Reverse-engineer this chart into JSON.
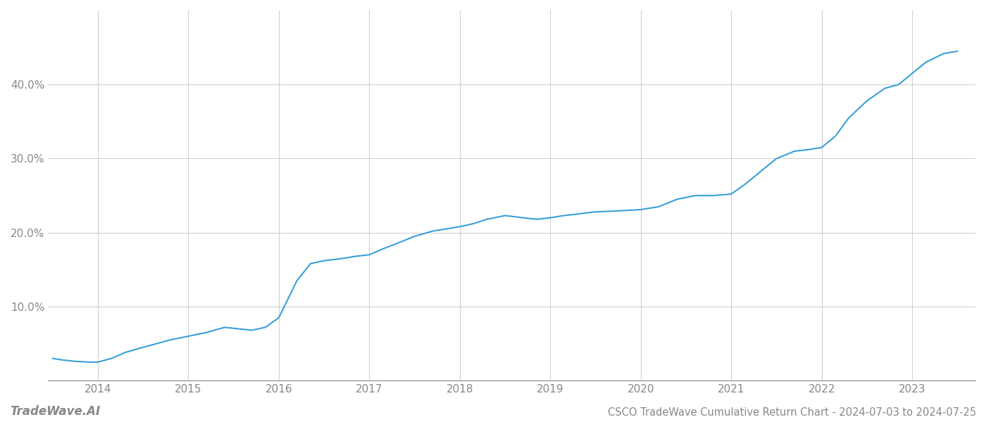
{
  "title": "CSCO TradeWave Cumulative Return Chart - 2024-07-03 to 2024-07-25",
  "watermark": "TradeWave.AI",
  "line_color": "#3a9fd8",
  "line_width": 1.5,
  "background_color": "#ffffff",
  "grid_color": "#cccccc",
  "x_years": [
    2014,
    2015,
    2016,
    2017,
    2018,
    2019,
    2020,
    2021,
    2022,
    2023
  ],
  "x_data": [
    2013.5,
    2013.6,
    2013.75,
    2013.9,
    2014.0,
    2014.15,
    2014.3,
    2014.5,
    2014.65,
    2014.8,
    2015.0,
    2015.2,
    2015.4,
    2015.55,
    2015.7,
    2015.85,
    2016.0,
    2016.1,
    2016.2,
    2016.35,
    2016.5,
    2016.7,
    2016.85,
    2017.0,
    2017.15,
    2017.3,
    2017.5,
    2017.7,
    2017.85,
    2018.0,
    2018.15,
    2018.3,
    2018.5,
    2018.7,
    2018.85,
    2019.0,
    2019.15,
    2019.3,
    2019.5,
    2019.7,
    2019.85,
    2020.0,
    2020.1,
    2020.2,
    2020.4,
    2020.6,
    2020.8,
    2021.0,
    2021.15,
    2021.3,
    2021.5,
    2021.7,
    2021.85,
    2022.0,
    2022.15,
    2022.3,
    2022.5,
    2022.7,
    2022.85,
    2023.0,
    2023.15,
    2023.35,
    2023.5
  ],
  "y_data": [
    3.0,
    2.8,
    2.6,
    2.5,
    2.5,
    3.0,
    3.8,
    4.5,
    5.0,
    5.5,
    6.0,
    6.5,
    7.2,
    7.0,
    6.8,
    7.2,
    8.5,
    11.0,
    13.5,
    15.8,
    16.2,
    16.5,
    16.8,
    17.0,
    17.8,
    18.5,
    19.5,
    20.2,
    20.5,
    20.8,
    21.2,
    21.8,
    22.3,
    22.0,
    21.8,
    22.0,
    22.3,
    22.5,
    22.8,
    22.9,
    23.0,
    23.1,
    23.3,
    23.5,
    24.5,
    25.0,
    25.0,
    25.2,
    26.5,
    28.0,
    30.0,
    31.0,
    31.2,
    31.5,
    33.0,
    35.5,
    37.8,
    39.5,
    40.0,
    41.5,
    43.0,
    44.2,
    44.5
  ],
  "ylim": [
    0,
    50
  ],
  "yticks": [
    10.0,
    20.0,
    30.0,
    40.0
  ],
  "xlim": [
    2013.45,
    2023.7
  ],
  "ylabel_fontsize": 11,
  "xlabel_fontsize": 11,
  "tick_color": "#888888",
  "title_fontsize": 10.5,
  "watermark_fontsize": 12
}
